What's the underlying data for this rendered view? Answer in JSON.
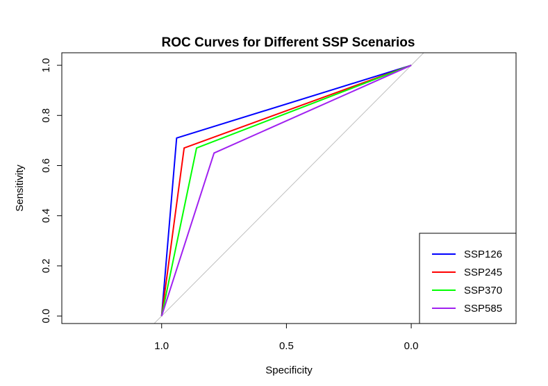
{
  "chart_data": {
    "type": "line",
    "title": "ROC Curves for Different SSP Scenarios",
    "xlabel": "Specificity",
    "ylabel": "Sensitivity",
    "x_reversed": true,
    "xlim": [
      1.4,
      -0.42
    ],
    "ylim": [
      -0.03,
      1.05
    ],
    "x_ticks": [
      1.0,
      0.5,
      0.0
    ],
    "x_tick_labels": [
      "1.0",
      "0.5",
      "0.0"
    ],
    "y_ticks": [
      0.0,
      0.2,
      0.4,
      0.6,
      0.8,
      1.0
    ],
    "y_tick_labels": [
      "0.0",
      "0.2",
      "0.4",
      "0.6",
      "0.8",
      "1.0"
    ],
    "legend_position": "bottom-right",
    "reference_line": {
      "color": "#bebebe",
      "x": [
        1.05,
        -0.05
      ],
      "y": [
        -0.05,
        1.05
      ]
    },
    "series": [
      {
        "name": "SSP126",
        "color": "#0000ff",
        "x": [
          1.0,
          0.94,
          0.0
        ],
        "y": [
          0.0,
          0.71,
          1.0
        ]
      },
      {
        "name": "SSP245",
        "color": "#ff0000",
        "x": [
          1.0,
          0.91,
          0.0
        ],
        "y": [
          0.0,
          0.67,
          1.0
        ]
      },
      {
        "name": "SSP370",
        "color": "#00ff00",
        "x": [
          1.0,
          0.86,
          0.0
        ],
        "y": [
          0.0,
          0.67,
          1.0
        ]
      },
      {
        "name": "SSP585",
        "color": "#a020f0",
        "x": [
          1.0,
          0.79,
          0.0
        ],
        "y": [
          0.0,
          0.65,
          1.0
        ]
      }
    ]
  }
}
